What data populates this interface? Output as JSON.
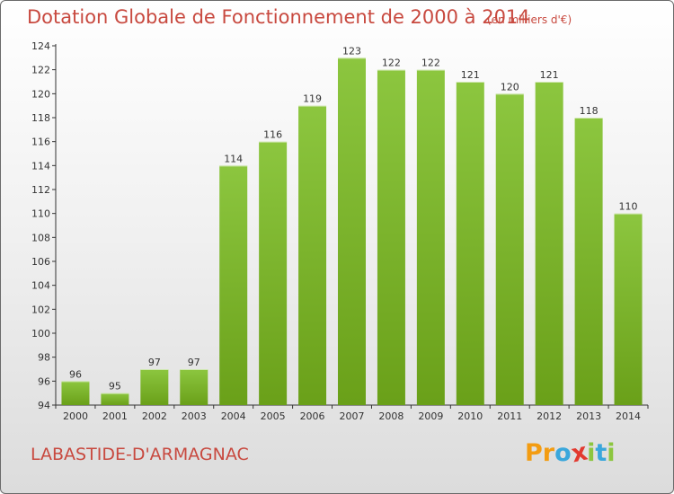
{
  "chart_data": {
    "type": "bar",
    "title": "Dotation Globale de Fonctionnement de 2000 à 2014",
    "subtitle": "(en milliers d'€)",
    "categories": [
      "2000",
      "2001",
      "2002",
      "2003",
      "2004",
      "2005",
      "2006",
      "2007",
      "2008",
      "2009",
      "2010",
      "2011",
      "2012",
      "2013",
      "2014"
    ],
    "values": [
      96,
      95,
      97,
      97,
      114,
      116,
      119,
      123,
      122,
      122,
      121,
      120,
      121,
      118,
      110
    ],
    "ylim": [
      94,
      124
    ],
    "yticks": [
      94,
      96,
      98,
      100,
      102,
      104,
      106,
      108,
      110,
      112,
      114,
      116,
      118,
      120,
      122,
      124
    ],
    "grid": false,
    "bar_color": "#8cc63f",
    "bar_color_dark": "#6aa019"
  },
  "commune": "LABASTIDE-D'ARMAGNAC",
  "logo": {
    "letters": [
      "P",
      "r",
      "o",
      "x",
      "i",
      "t",
      "i"
    ],
    "colors": [
      "#f39c12",
      "#f39c12",
      "#3aa7dc",
      "#e2392f",
      "#8cc63f",
      "#3aa7dc",
      "#8cc63f"
    ]
  }
}
